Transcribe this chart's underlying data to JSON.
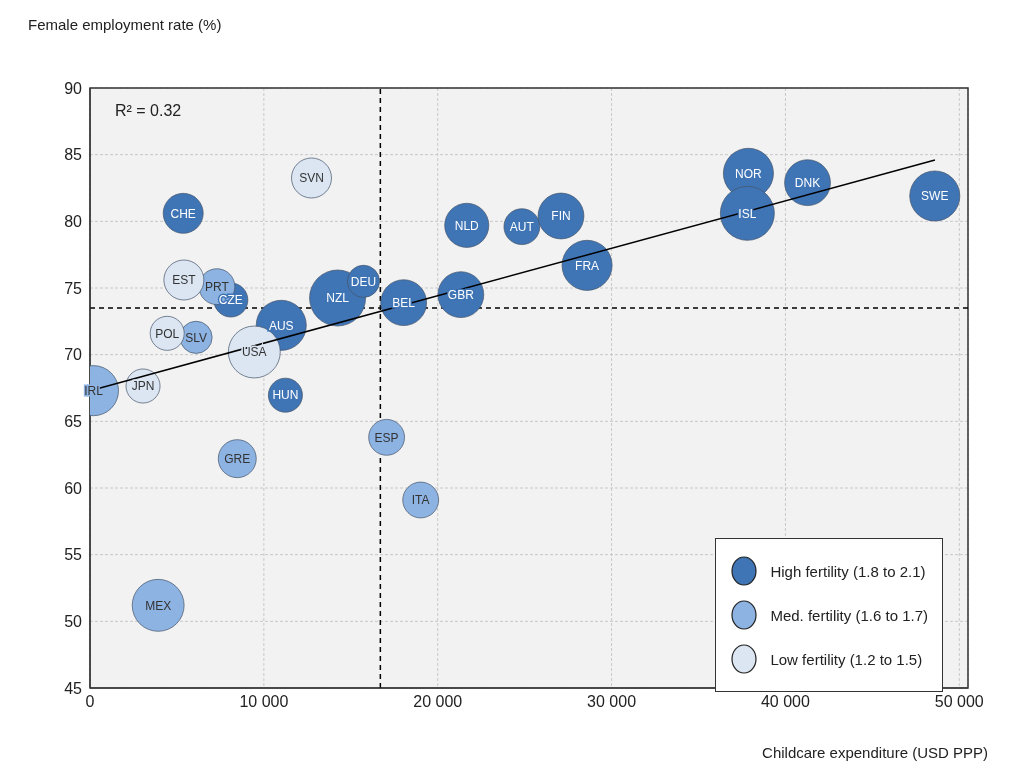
{
  "chart_data": {
    "type": "bubble",
    "ylabel": "Female employment rate (%)",
    "xlabel": "Childcare expenditure (USD PPP)",
    "annotations": [
      "R² = 0.32"
    ],
    "xlim": [
      0,
      50500
    ],
    "xticks": [
      0,
      {
        "value": 10000,
        "label": "10 000"
      },
      {
        "value": 20000,
        "label": "20 000"
      },
      {
        "value": 30000,
        "label": "30 000"
      },
      {
        "value": 40000,
        "label": "40 000"
      },
      {
        "value": 50000,
        "label": "50 000"
      }
    ],
    "ylim": [
      45,
      90
    ],
    "yticks": [
      45,
      50,
      55,
      60,
      65,
      70,
      75,
      80,
      85,
      90
    ],
    "grid": true,
    "legend": "bottom right",
    "ref_lines": [
      {
        "axis": "x",
        "value": 16700,
        "line_style": "dashed",
        "color": "#000000"
      },
      {
        "axis": "y",
        "value": 73.5,
        "line_style": "dashed",
        "color": "#000000"
      }
    ],
    "series": [
      {
        "name": "High fertility (1.8 to 2.1)",
        "color": "#3f74b5",
        "x": [
          5360,
          8100,
          11000,
          14240,
          15730,
          18040,
          21330,
          21670,
          24840,
          27090,
          28590,
          37870,
          37810,
          41270,
          48590,
          11240
        ],
        "values": [
          80.6,
          74.1,
          72.2,
          74.25,
          75.5,
          73.9,
          74.5,
          79.7,
          79.6,
          80.4,
          76.7,
          83.6,
          80.6,
          82.9,
          81.9,
          66.96
        ],
        "sizes": [
          0.51,
          0.37,
          0.8,
          1,
          0.33,
          0.67,
          0.67,
          0.62,
          0.41,
          0.67,
          0.8,
          0.8,
          0.93,
          0.67,
          0.8,
          0.37
        ],
        "value_labels": [
          "CHE",
          "CZE",
          "AUS",
          "NZL",
          "DEU",
          "BEL",
          "GBR",
          "NLD",
          "AUT",
          "FIN",
          "FRA",
          "NOR",
          "ISL",
          "DNK",
          "SWE",
          "HUN"
        ]
      },
      {
        "name": "Med. fertility (1.6 to 1.7)",
        "color": "#8db3e2",
        "x": [
          7300,
          6100,
          200,
          8470,
          17060,
          19020,
          3920
        ],
        "values": [
          75.1,
          71.3,
          67.3,
          62.2,
          63.8,
          59.1,
          51.2
        ],
        "sizes": [
          0.41,
          0.33,
          0.8,
          0.46,
          0.41,
          0.41,
          0.86
        ],
        "value_labels": [
          "PRT",
          "SLV",
          "IRL",
          "GRE",
          "ESP",
          "ITA",
          "MEX"
        ]
      },
      {
        "name": "Low fertility (1.2 to 1.5)",
        "color": "#dce6f2",
        "x": [
          12740,
          5400,
          4440,
          9450,
          3050
        ],
        "values": [
          83.25,
          75.6,
          71.6,
          70.2,
          67.65
        ],
        "sizes": [
          0.51,
          0.51,
          0.37,
          0.86,
          0.37
        ],
        "value_labels": [
          "SVN",
          "EST",
          "POL",
          "USA",
          "JPN"
        ]
      },
      {
        "type": "line",
        "color": "#000000",
        "x": [
          0,
          48600
        ],
        "values": [
          67.3,
          84.6
        ]
      }
    ]
  }
}
